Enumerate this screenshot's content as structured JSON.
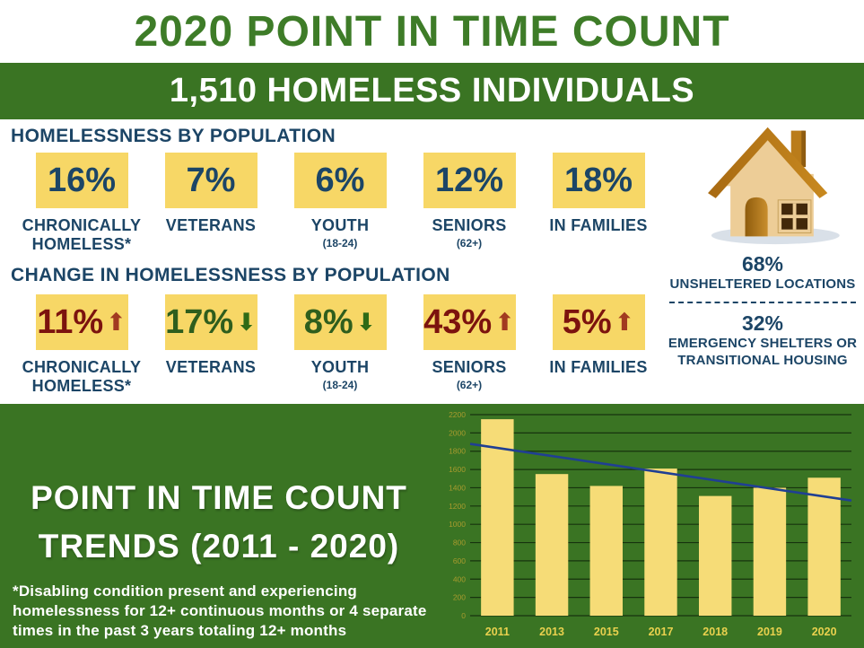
{
  "header": {
    "title": "2020 POINT IN TIME COUNT",
    "subtitle": "1,510 HOMELESS INDIVIDUALS"
  },
  "population": {
    "heading": "HOMELESSNESS BY POPULATION",
    "stats": [
      {
        "value": "16%",
        "label": "CHRONICALLY HOMELESS*",
        "sub": ""
      },
      {
        "value": "7%",
        "label": "VETERANS",
        "sub": ""
      },
      {
        "value": "6%",
        "label": "YOUTH",
        "sub": "(18-24)"
      },
      {
        "value": "12%",
        "label": "SENIORS",
        "sub": "(62+)"
      },
      {
        "value": "18%",
        "label": "IN FAMILIES",
        "sub": ""
      }
    ]
  },
  "change": {
    "heading": "CHANGE IN HOMELESSNESS BY POPULATION",
    "stats": [
      {
        "value": "11%",
        "direction": "up",
        "arrow_glyph": "⬆",
        "label": "CHRONICALLY HOMELESS*",
        "sub": ""
      },
      {
        "value": "17%",
        "direction": "down",
        "arrow_glyph": "⬇",
        "label": "VETERANS",
        "sub": ""
      },
      {
        "value": "8%",
        "direction": "down",
        "arrow_glyph": "⬇",
        "label": "YOUTH",
        "sub": "(18-24)"
      },
      {
        "value": "43%",
        "direction": "up",
        "arrow_glyph": "⬆",
        "label": "SENIORS",
        "sub": "(62+)"
      },
      {
        "value": "5%",
        "direction": "up",
        "arrow_glyph": "⬆",
        "label": "IN FAMILIES",
        "sub": ""
      }
    ]
  },
  "shelter": {
    "unsheltered": {
      "pct": "68%",
      "label": "UNSHELTERED LOCATIONS"
    },
    "sheltered": {
      "pct": "32%",
      "label": "EMERGENCY SHELTERS OR TRANSITIONAL HOUSING"
    }
  },
  "trends": {
    "title_line1": "POINT IN TIME COUNT",
    "title_line2": "TRENDS (2011 - 2020)",
    "footnote": "*Disabling condition present and experiencing homelessness for 12+ continuous months or 4 separate times in the past 3 years totaling 12+ months"
  },
  "chart_data": {
    "type": "bar",
    "title": "POINT IN TIME COUNT TRENDS (2011 - 2020)",
    "categories": [
      "2011",
      "2013",
      "2015",
      "2017",
      "2018",
      "2019",
      "2020"
    ],
    "values": [
      2150,
      1550,
      1420,
      1610,
      1310,
      1400,
      1510
    ],
    "xlabel": "",
    "ylabel": "",
    "ylim": [
      0,
      2200
    ],
    "ytick_step": 200,
    "grid": true,
    "legend": false,
    "trend_line": {
      "type": "linear",
      "start_value": 1880,
      "end_value": 1260
    },
    "colors": {
      "bar": "#f6dc77",
      "grid": "#17330e",
      "ytick_label": "#a89b2e",
      "xtick_label": "#e9d14e",
      "trend": "#203f93",
      "background": "#3a7423"
    }
  }
}
